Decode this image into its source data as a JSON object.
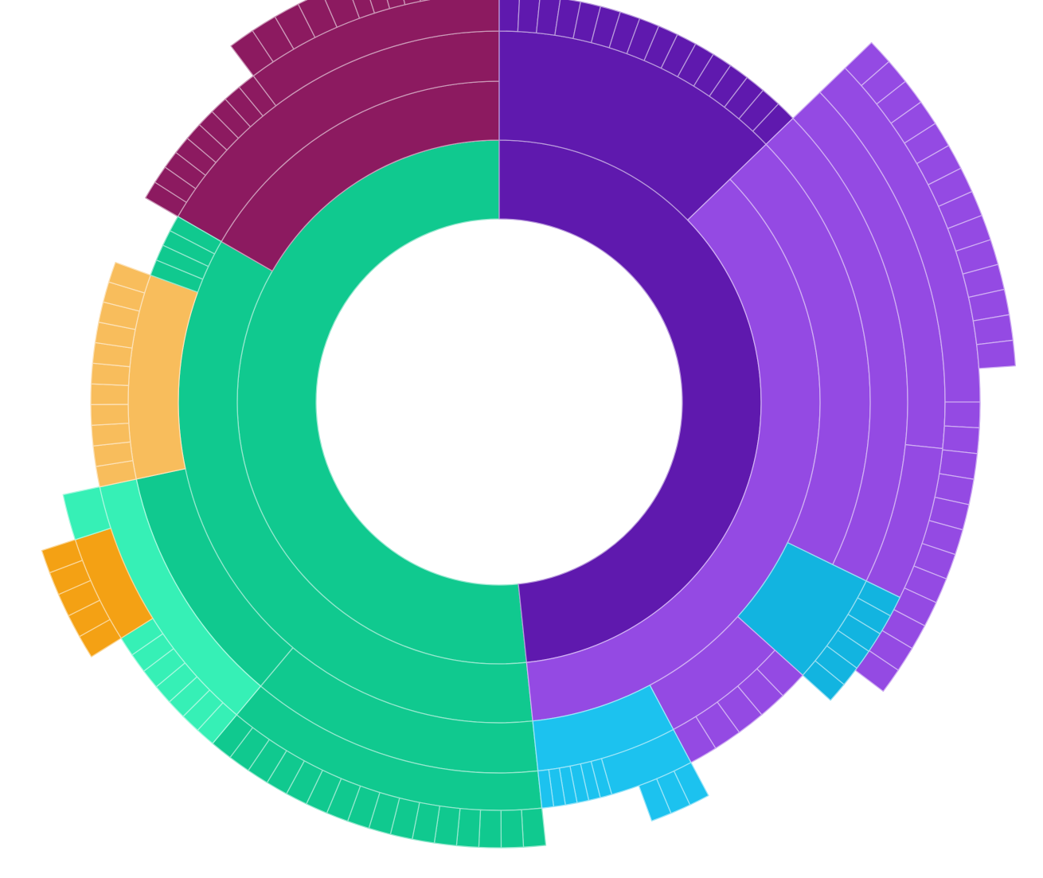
{
  "chart_data": {
    "type": "sunburst",
    "title": "",
    "legend": "none",
    "colors": {
      "green": "#10c98f",
      "green_light": "#36f0b6",
      "purple_dark": "#5f19ae",
      "purple": "#944ae3",
      "maroon": "#8c1a60",
      "orange_light": "#f8bd5c",
      "orange": "#f4a114",
      "cyan": "#1cc2ef",
      "cyan_dark": "#12b4e0"
    },
    "root": {
      "value": 360,
      "children": [
        {
          "color": "green",
          "value": 186,
          "inner_value": 186,
          "levels": 3,
          "children": [
            {
              "color": "green",
              "value": 6,
              "levels": 1,
              "leaves": 16
            },
            {
              "color": "green_light",
              "value": 32,
              "levels": 0,
              "children": [
                {
                  "color": "green_light",
                  "value": 6,
                  "levels": 1,
                  "leaves": 7
                },
                {
                  "color": "orange",
                  "value": 9,
                  "levels": 1,
                  "leaves": 5
                }
              ]
            },
            {
              "color": "orange_light",
              "value": 31,
              "levels": 1,
              "leaves": 11
            },
            {
              "color": "maroon",
              "value": 73,
              "levels": 2,
              "leaves": 25
            }
          ]
        },
        {
          "color": "purple_dark",
          "value": 174,
          "inner_value": 174,
          "levels": 1,
          "children": [
            {
              "color": "purple_dark",
              "value": 46,
              "levels": 1,
              "leaves": 16
            },
            {
              "color": "purple",
              "value": 124,
              "levels": 1,
              "children": [
                {
                  "color": "purple",
                  "value": 50,
                  "levels": 3,
                  "children": [
                    {
                      "color": "purple",
                      "value": 38,
                      "levels": 1,
                      "leaves": 14
                    },
                    {
                      "color": "cyan_dark",
                      "value": 11,
                      "levels": 1,
                      "leaves": 6
                    }
                  ]
                },
                {
                  "color": "purple",
                  "value": 13,
                  "levels": 1,
                  "leaves": 5
                },
                {
                  "color": "cyan",
                  "value": 21,
                  "levels": 1,
                  "children": [
                    {
                      "color": "cyan",
                      "value": 13,
                      "levels": 1,
                      "leaves": 6
                    },
                    {
                      "color": "cyan",
                      "value": 8,
                      "levels": 1,
                      "leaves": 3
                    }
                  ]
                }
              ]
            }
          ]
        }
      ]
    }
  }
}
